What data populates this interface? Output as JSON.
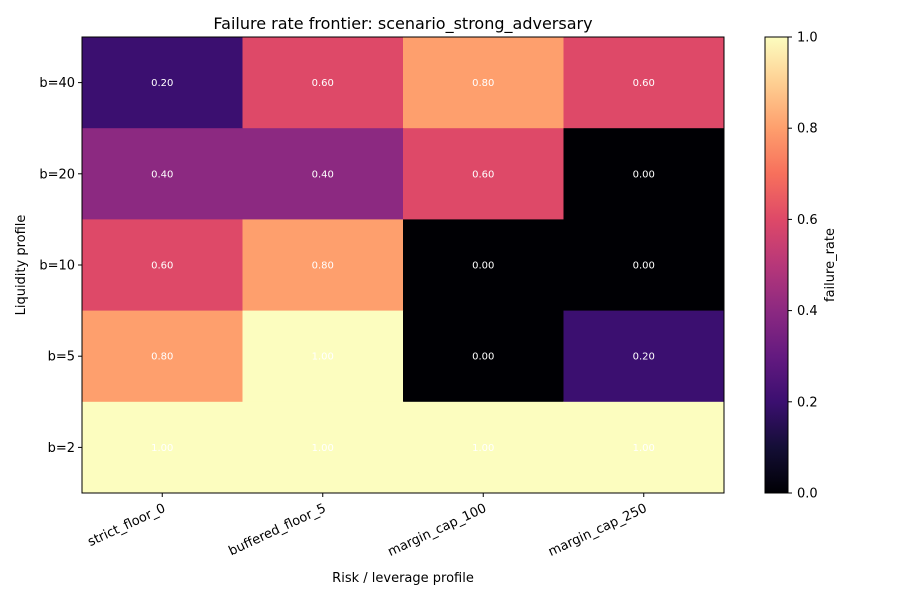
{
  "chart_data": {
    "type": "heatmap",
    "title": "Failure rate frontier: scenario_strong_adversary",
    "xlabel": "Risk / leverage profile",
    "ylabel": "Liquidity profile",
    "x_categories": [
      "strict_floor_0",
      "buffered_floor_5",
      "margin_cap_100",
      "margin_cap_250"
    ],
    "y_categories": [
      "b=40",
      "b=20",
      "b=10",
      "b=5",
      "b=2"
    ],
    "values": [
      [
        0.2,
        0.6,
        0.8,
        0.6
      ],
      [
        0.4,
        0.4,
        0.6,
        0.0
      ],
      [
        0.6,
        0.8,
        0.0,
        0.0
      ],
      [
        0.8,
        1.0,
        0.0,
        0.2
      ],
      [
        1.0,
        1.0,
        1.0,
        1.0
      ]
    ],
    "cell_labels": [
      [
        "0.20",
        "0.60",
        "0.80",
        "0.60"
      ],
      [
        "0.40",
        "0.40",
        "0.60",
        "0.00"
      ],
      [
        "0.60",
        "0.80",
        "0.00",
        "0.00"
      ],
      [
        "0.80",
        "1.00",
        "0.00",
        "0.20"
      ],
      [
        "1.00",
        "1.00",
        "1.00",
        "1.00"
      ]
    ],
    "colormap": "magma",
    "colorbar": {
      "label": "failure_rate",
      "range": [
        0,
        1
      ],
      "ticks": [
        0.0,
        0.2,
        0.4,
        0.6,
        0.8,
        1.0
      ],
      "tick_labels": [
        "0.0",
        "0.2",
        "0.4",
        "0.6",
        "0.8",
        "1.0"
      ]
    },
    "grid": false
  }
}
